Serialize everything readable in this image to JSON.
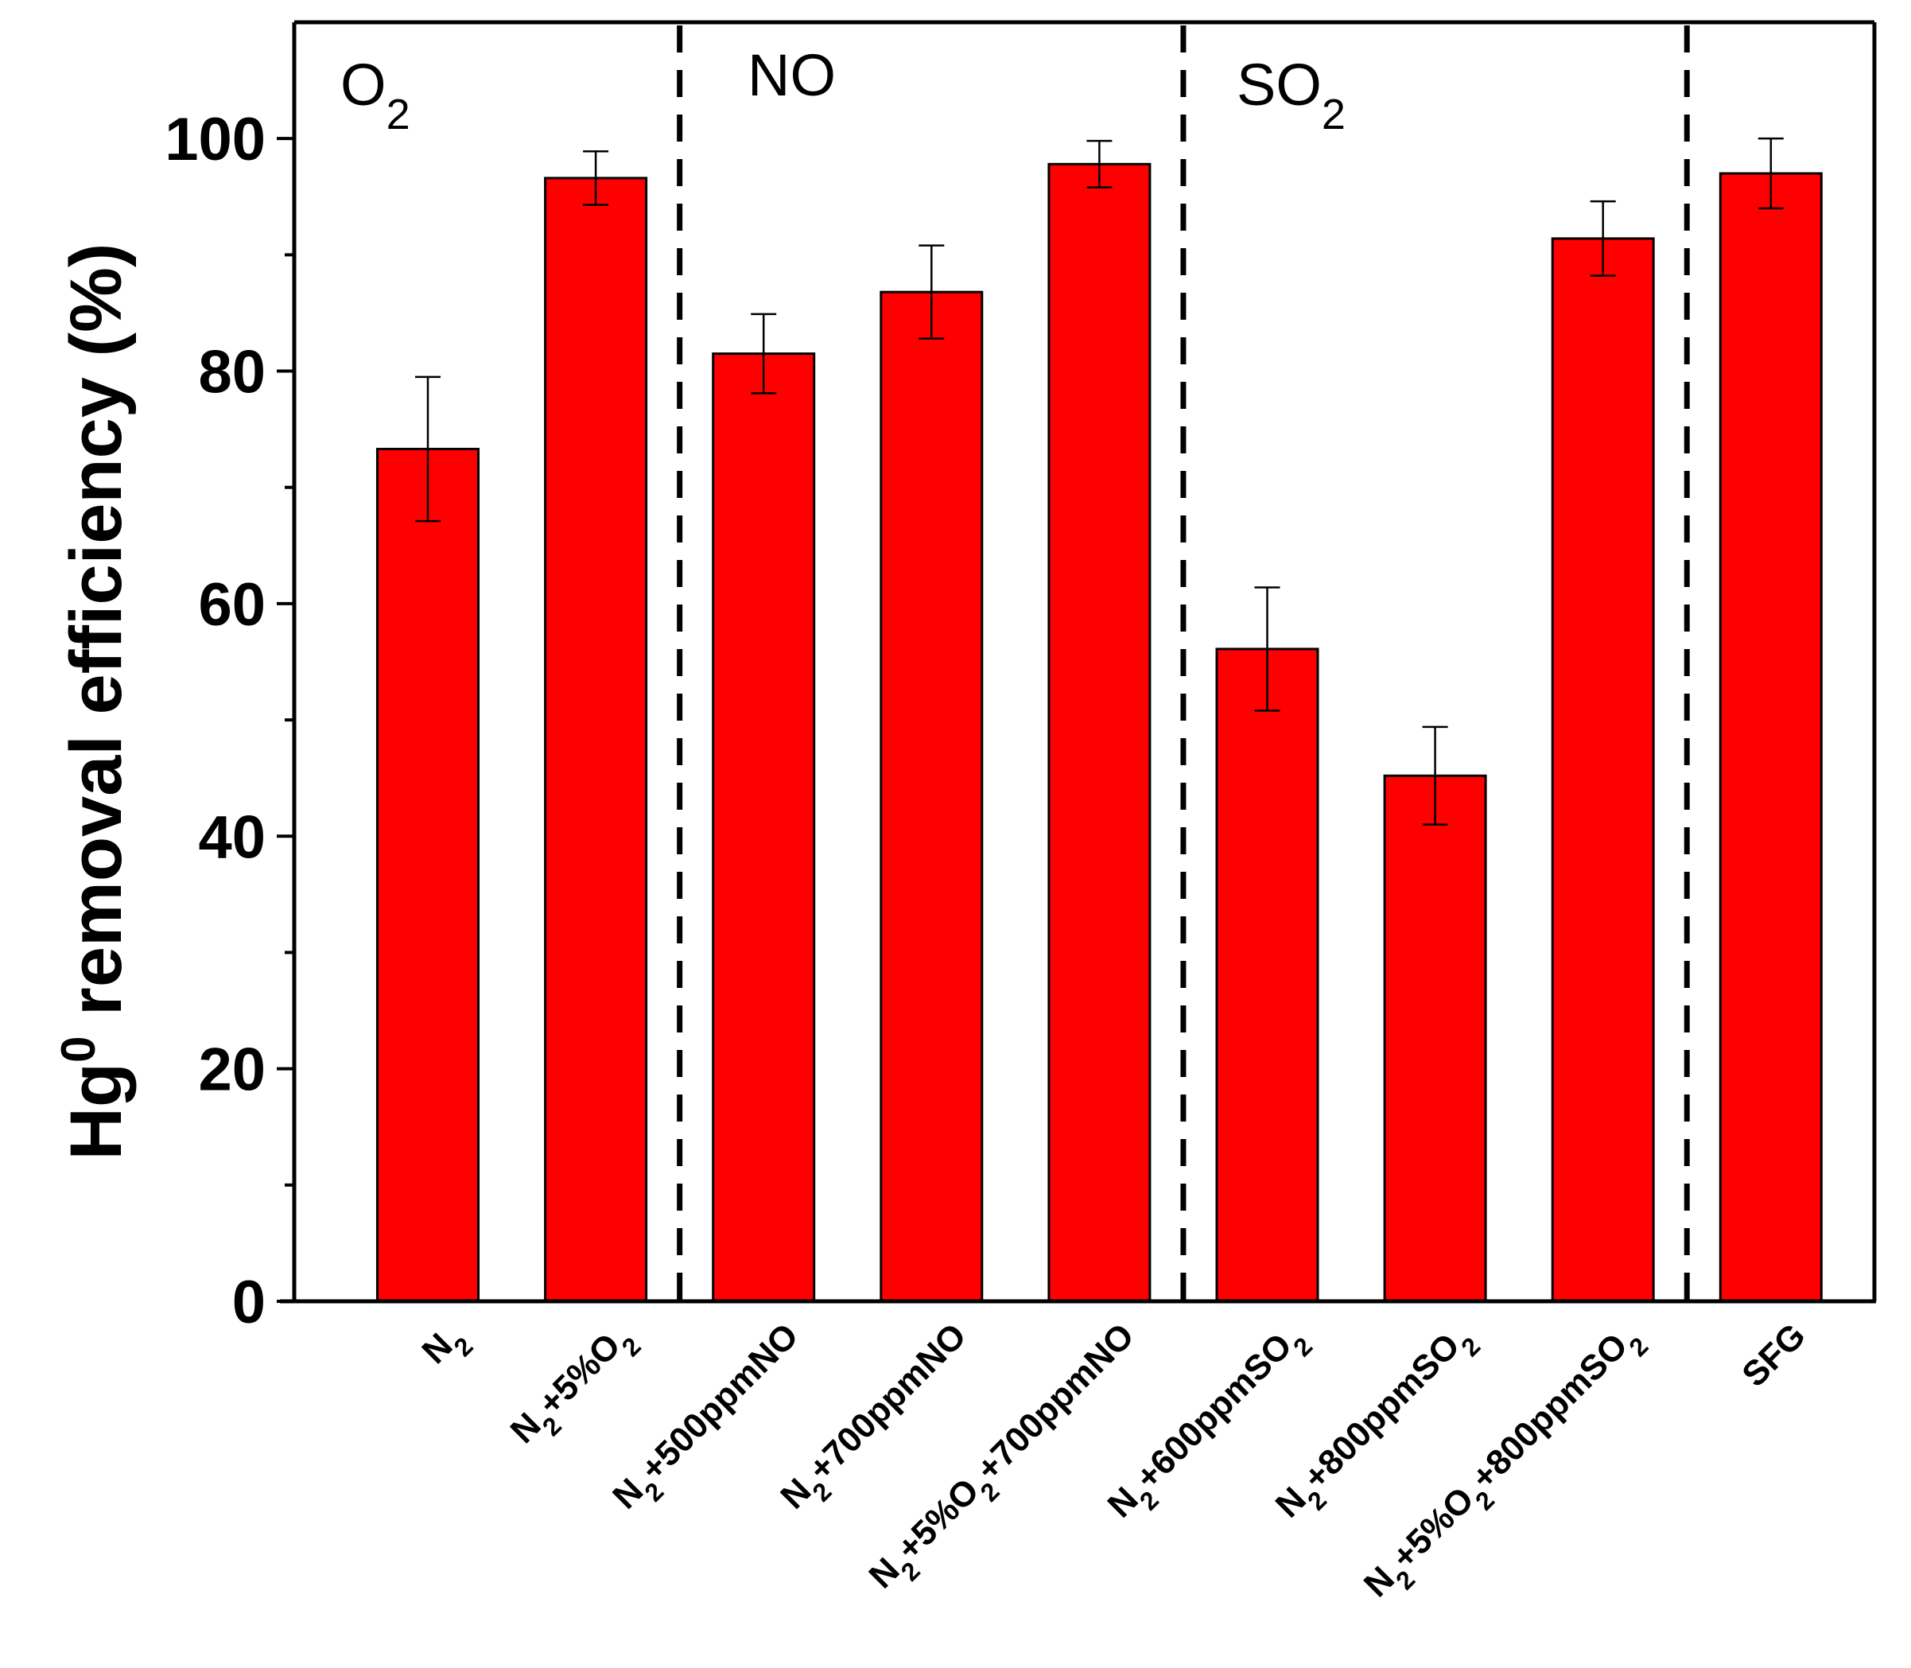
{
  "chart_data": {
    "type": "bar",
    "ylabel_parts": {
      "main": "Hg",
      "sup": "0",
      "rest": " removal efficiency (%)"
    },
    "ylim": [
      0,
      110
    ],
    "yticks": [
      0,
      20,
      40,
      60,
      80,
      100
    ],
    "ytick_labels": [
      "0",
      "20",
      "40",
      "60",
      "80",
      "100"
    ],
    "grid": false,
    "bar_color": "#ff0000",
    "categories": [
      {
        "parts": [
          {
            "t": "N"
          },
          {
            "t": "2",
            "sub": true
          }
        ]
      },
      {
        "parts": [
          {
            "t": "N"
          },
          {
            "t": "2",
            "sub": true
          },
          {
            "t": "+5%O"
          },
          {
            "t": "2",
            "sub": true
          }
        ]
      },
      {
        "parts": [
          {
            "t": "N"
          },
          {
            "t": "2",
            "sub": true
          },
          {
            "t": "+500ppmNO"
          }
        ]
      },
      {
        "parts": [
          {
            "t": "N"
          },
          {
            "t": "2",
            "sub": true
          },
          {
            "t": "+700ppmNO"
          }
        ]
      },
      {
        "parts": [
          {
            "t": "N"
          },
          {
            "t": "2",
            "sub": true
          },
          {
            "t": "+5%O"
          },
          {
            "t": "2",
            "sub": true
          },
          {
            "t": "+700ppmNO"
          }
        ]
      },
      {
        "parts": [
          {
            "t": "N"
          },
          {
            "t": "2",
            "sub": true
          },
          {
            "t": "+600ppmSO"
          },
          {
            "t": "2",
            "sub": true
          }
        ]
      },
      {
        "parts": [
          {
            "t": "N"
          },
          {
            "t": "2",
            "sub": true
          },
          {
            "t": "+800ppmSO"
          },
          {
            "t": "2",
            "sub": true
          }
        ]
      },
      {
        "parts": [
          {
            "t": "N"
          },
          {
            "t": "2",
            "sub": true
          },
          {
            "t": "+5%O"
          },
          {
            "t": "2",
            "sub": true
          },
          {
            "t": "+800ppmSO"
          },
          {
            "t": "2",
            "sub": true
          }
        ]
      },
      {
        "parts": [
          {
            "t": "SFG"
          }
        ]
      }
    ],
    "values": [
      73.3,
      96.6,
      81.5,
      86.8,
      97.8,
      56.1,
      45.2,
      91.4,
      97.0
    ],
    "errors": [
      6.2,
      2.3,
      3.4,
      4.0,
      2.0,
      5.3,
      4.2,
      3.2,
      3.0
    ],
    "groups": [
      {
        "parts": [
          {
            "t": "O"
          },
          {
            "t": "2",
            "sub": true
          }
        ]
      },
      {
        "parts": [
          {
            "t": "NO"
          }
        ]
      },
      {
        "parts": [
          {
            "t": "SO"
          },
          {
            "t": "2",
            "sub": true
          }
        ]
      },
      {
        "parts": []
      }
    ],
    "group_separators_after": [
      2,
      5,
      8
    ]
  }
}
